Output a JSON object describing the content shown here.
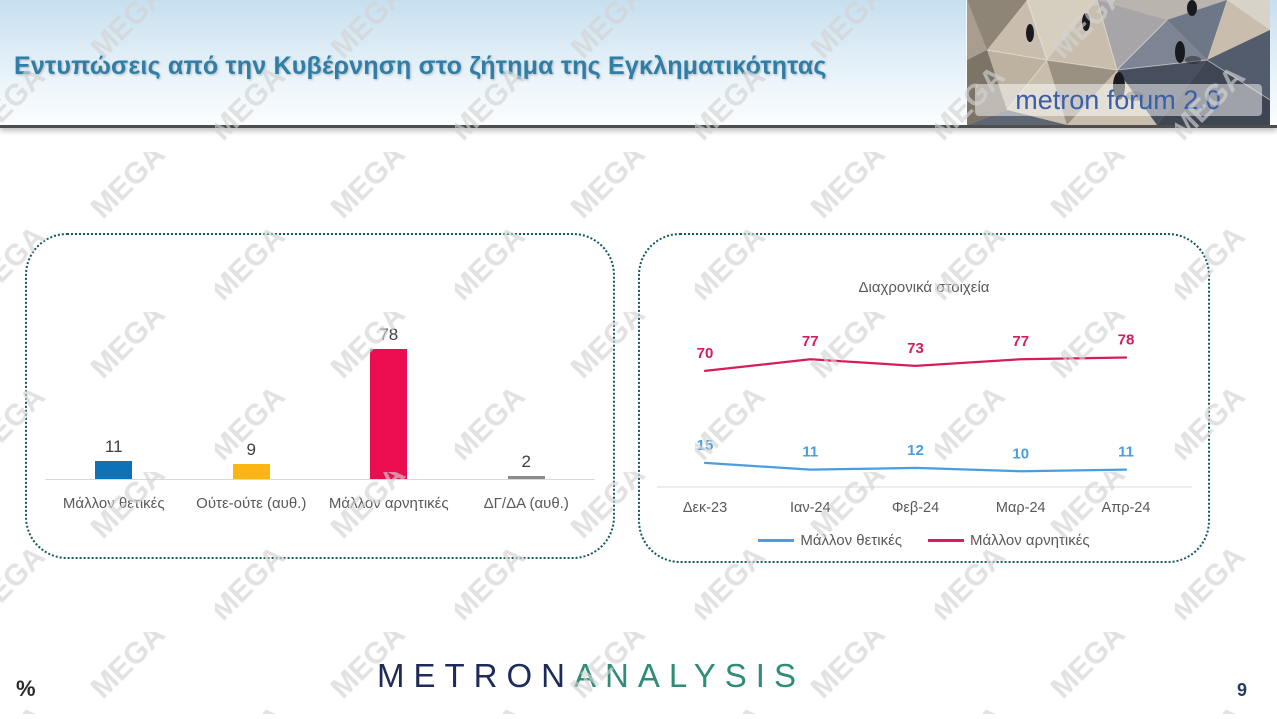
{
  "header": {
    "title": "Εντυπώσεις από την Κυβέρνηση στο ζήτημα της Εγκληματικότητας",
    "logo": {
      "text": "metron forum 2.0"
    }
  },
  "watermark": {
    "text": "MEGA"
  },
  "chart_data": [
    {
      "type": "bar",
      "categories": [
        "Μάλλον θετικές",
        "Ούτε-ούτε (αυθ.)",
        "Μάλλον αρνητικές",
        "ΔΓ/ΔΑ (αυθ.)"
      ],
      "values": [
        11,
        9,
        78,
        2
      ],
      "value_labels": [
        "11",
        "9",
        "78",
        "2"
      ],
      "bar_colors": [
        "#0f72b8",
        "#fbb614",
        "#ec0c50",
        "#8c8c8c"
      ],
      "title": "",
      "xlabel": "",
      "ylabel": "",
      "ylim": [
        0,
        100
      ],
      "grid": false,
      "unit": "%"
    },
    {
      "type": "line",
      "title": "Διαχρονικά στοιχεία",
      "x": [
        "Δεκ-23",
        "Ιαν-24",
        "Φεβ-24",
        "Μαρ-24",
        "Απρ-24"
      ],
      "series": [
        {
          "name": "Μάλλον θετικές",
          "values": [
            15,
            11,
            12,
            10,
            11
          ],
          "color": "#4a9de0"
        },
        {
          "name": "Μάλλον αρνητικές",
          "values": [
            70,
            77,
            73,
            77,
            78
          ],
          "color": "#d81b5e"
        }
      ],
      "ylim": [
        0,
        100
      ],
      "grid": false,
      "legend_position": "bottom",
      "unit": "%"
    }
  ],
  "footer": {
    "percent_label": "%",
    "page_number": "9",
    "brand_part1": "METRON",
    "brand_part2": "ANALYSIS"
  },
  "colors": {
    "title": "#2e7ea8",
    "panel_border": "#115a60",
    "axis": "#d9d9d9",
    "label_dark": "#404040",
    "label_gray": "#595959",
    "watermark": "#d2d2d2",
    "brand_navy": "#1e2a5a",
    "brand_teal": "#2e8c77",
    "logo_text_blue": "#3a5fa9"
  }
}
